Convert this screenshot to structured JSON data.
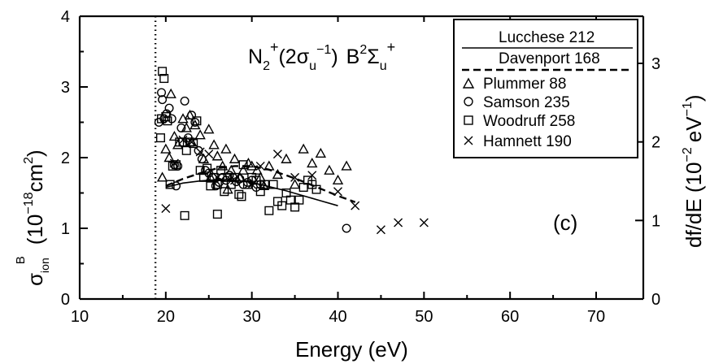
{
  "chart_data": {
    "type": "scatter",
    "panel_label": "(c)",
    "annotation": {
      "main": "N",
      "sub": "2",
      "sup": "+",
      "orbital_open": "(2σ",
      "orbital_sub": "u",
      "orbital_sup": "−1",
      "orbital_close": ")",
      "state": "B",
      "state_sup": "2",
      "state_sym": "Σ",
      "state_sub": "u",
      "state_sup2": "+"
    },
    "xlabel": "Energy (eV)",
    "ylabel": {
      "main": "σ",
      "sub": "ion",
      "sup": "B",
      "unit_open": "(10",
      "unit_exp": "−18",
      "unit_close": "cm",
      "unit_sq": "2",
      "paren": ")"
    },
    "y2label": {
      "main": "df/dE (10",
      "exp": "−2",
      "unit": "eV",
      "unit_exp": "−1",
      "close": ")"
    },
    "xlim": [
      10,
      72
    ],
    "ylim": [
      0,
      4
    ],
    "y2lim": [
      0,
      3.6
    ],
    "xticks": [
      "10",
      "20",
      "30",
      "40",
      "50",
      "60",
      "70"
    ],
    "yticks": [
      "0",
      "1",
      "2",
      "3",
      "4"
    ],
    "y2ticks": [
      "0",
      "1",
      "2",
      "3"
    ],
    "threshold_line_x": 18.8,
    "legend_placement": "top-right",
    "legend_entries": [
      {
        "label": "Lucchese 212",
        "marker": "line-solid"
      },
      {
        "label": "Davenport 168",
        "marker": "line-dashed"
      },
      {
        "label": "Plummer 88",
        "marker": "triangle"
      },
      {
        "label": "Samson 235",
        "marker": "circle"
      },
      {
        "label": "Woodruff 258",
        "marker": "square"
      },
      {
        "label": "Hamnett 190",
        "marker": "cross"
      }
    ],
    "series": [
      {
        "name": "Lucchese 212",
        "kind": "line-solid",
        "x": [
          20.0,
          22.0,
          24.0,
          26.0,
          28.0,
          30.0,
          32.0,
          34.0,
          36.0,
          38.0,
          40.0
        ],
        "y": [
          1.58,
          1.64,
          1.67,
          1.69,
          1.68,
          1.65,
          1.59,
          1.53,
          1.46,
          1.39,
          1.32
        ]
      },
      {
        "name": "Davenport 168",
        "kind": "line-dashed",
        "x": [
          20.0,
          22.0,
          24.0,
          26.0,
          28.0,
          30.0,
          32.0,
          34.0,
          36.0,
          38.0,
          40.0,
          42.0
        ],
        "y": [
          1.6,
          1.7,
          1.78,
          1.85,
          1.88,
          1.88,
          1.83,
          1.75,
          1.66,
          1.56,
          1.46,
          1.37
        ]
      },
      {
        "name": "Plummer 88",
        "kind": "triangle",
        "x": [
          19.6,
          20.0,
          20.4,
          21.0,
          21.4,
          22.0,
          22.4,
          23.0,
          23.4,
          24.0,
          24.4,
          25.0,
          25.6,
          26.0,
          26.6,
          27.0,
          27.6,
          28.0,
          28.6,
          29.0,
          29.6,
          30.0,
          30.6,
          31.0,
          32.0,
          33.0,
          34.0,
          35.0,
          36.0,
          37.0,
          38.0,
          39.0,
          40.0,
          41.0,
          20.6,
          22.8,
          25.2,
          27.2,
          31.4
        ],
        "y": [
          1.72,
          2.12,
          2.0,
          2.3,
          2.18,
          2.55,
          2.42,
          2.22,
          2.46,
          2.32,
          1.98,
          2.4,
          2.18,
          2.02,
          1.88,
          2.12,
          1.82,
          1.98,
          1.72,
          1.82,
          1.92,
          1.88,
          1.82,
          1.72,
          1.88,
          1.76,
          1.98,
          1.62,
          2.12,
          1.92,
          2.06,
          1.82,
          1.68,
          1.88,
          2.9,
          2.6,
          1.72,
          1.55,
          1.6
        ]
      },
      {
        "name": "Samson 235",
        "kind": "circle",
        "x": [
          19.2,
          19.5,
          19.8,
          20.1,
          20.4,
          20.7,
          21.0,
          21.4,
          21.8,
          22.2,
          22.6,
          23.0,
          23.4,
          23.8,
          24.2,
          24.6,
          25.0,
          25.4,
          25.8,
          26.2,
          26.6,
          27.0,
          27.4,
          27.8,
          28.2,
          28.6,
          29.0,
          29.5,
          30.0,
          30.5,
          31.0,
          41.0,
          19.6,
          21.2
        ],
        "y": [
          2.5,
          2.92,
          2.55,
          2.62,
          2.7,
          2.55,
          1.9,
          1.88,
          2.42,
          2.8,
          2.28,
          2.6,
          2.5,
          2.1,
          1.98,
          1.82,
          1.78,
          1.72,
          1.6,
          1.65,
          1.72,
          1.68,
          1.75,
          1.72,
          1.66,
          1.7,
          1.62,
          1.65,
          1.68,
          1.58,
          1.62,
          1.0,
          2.82,
          1.6
        ]
      },
      {
        "name": "Woodruff 258",
        "kind": "square",
        "x": [
          19.4,
          19.6,
          19.8,
          20.0,
          20.2,
          20.5,
          20.8,
          21.2,
          21.6,
          22.0,
          22.4,
          22.8,
          23.2,
          23.6,
          24.0,
          24.4,
          24.8,
          25.2,
          25.6,
          26.0,
          26.4,
          26.8,
          27.2,
          27.6,
          28.0,
          28.5,
          29.0,
          29.5,
          30.0,
          30.5,
          31.0,
          31.5,
          32.0,
          32.5,
          33.0,
          33.5,
          34.0,
          34.5,
          35.0,
          35.5,
          36.0,
          36.5,
          37.0,
          37.5,
          19.5,
          22.2,
          26.0,
          28.8
        ],
        "y": [
          2.28,
          3.22,
          3.12,
          2.58,
          2.52,
          1.62,
          1.88,
          1.9,
          2.22,
          2.22,
          2.1,
          2.22,
          2.2,
          2.52,
          1.82,
          1.72,
          1.85,
          1.6,
          1.72,
          1.62,
          1.82,
          1.52,
          1.72,
          1.62,
          1.72,
          1.48,
          1.9,
          1.62,
          1.72,
          1.68,
          1.52,
          1.62,
          1.25,
          1.62,
          1.38,
          1.32,
          1.5,
          1.4,
          1.3,
          1.4,
          1.58,
          1.68,
          1.62,
          1.55,
          2.55,
          1.18,
          1.2,
          1.45
        ]
      },
      {
        "name": "Hamnett 190",
        "kind": "cross",
        "x": [
          20.0,
          21.0,
          22.0,
          23.0,
          24.0,
          25.0,
          26.0,
          28.0,
          30.0,
          31.0,
          33.0,
          35.0,
          37.0,
          40.0,
          42.0,
          45.0,
          47.0,
          50.0
        ],
        "y": [
          1.28,
          1.92,
          2.25,
          2.22,
          2.08,
          2.05,
          1.72,
          1.68,
          1.62,
          1.88,
          2.05,
          1.72,
          1.75,
          1.52,
          1.32,
          0.98,
          1.08,
          1.08
        ]
      }
    ]
  }
}
